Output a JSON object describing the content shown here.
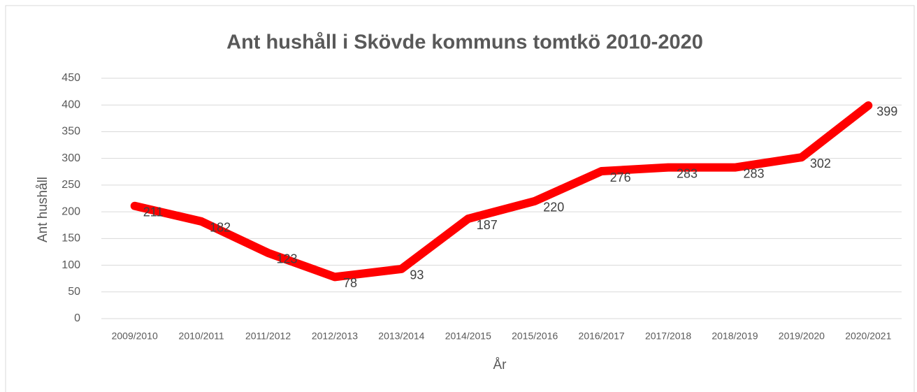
{
  "chart_data": {
    "type": "line",
    "title": "Ant hushåll i Skövde kommuns tomtkö 2010-2020",
    "x_label": "År",
    "y_label": "Ant hushåll",
    "categories": [
      "2009/2010",
      "2010/2011",
      "2011/2012",
      "2012/2013",
      "2013/2014",
      "2014/2015",
      "2015/2016",
      "2016/2017",
      "2017/2018",
      "2018/2019",
      "2019/2020",
      "2020/2021"
    ],
    "values": [
      211,
      182,
      123,
      78,
      93,
      187,
      220,
      276,
      283,
      283,
      302,
      399
    ],
    "color": "#ff0000",
    "ylim": [
      0,
      450
    ],
    "yticks": [
      0,
      50,
      100,
      150,
      200,
      250,
      300,
      350,
      400,
      450
    ],
    "grid": true
  }
}
